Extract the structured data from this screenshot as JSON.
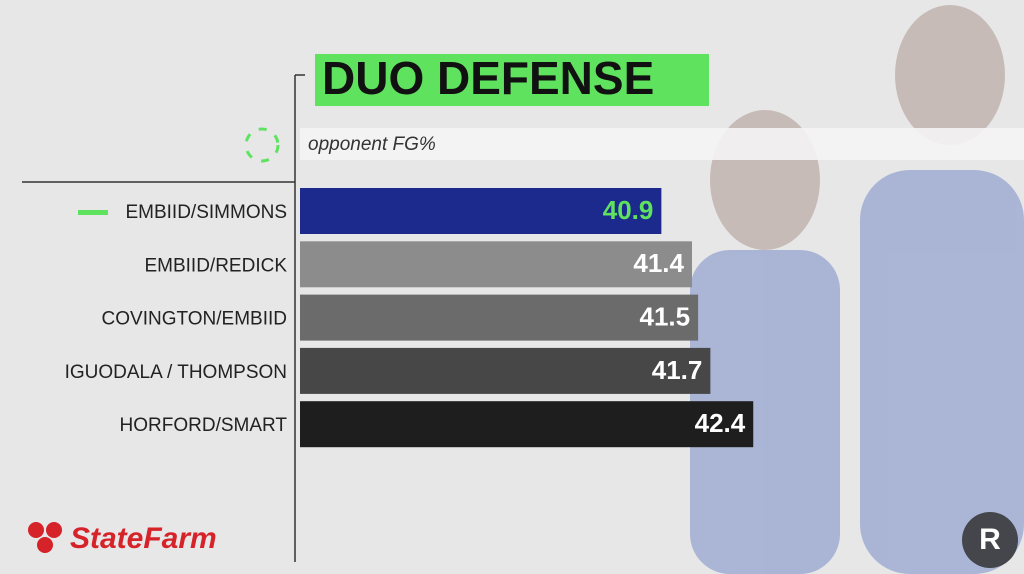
{
  "chart_data": {
    "type": "bar",
    "orientation": "horizontal",
    "title": "DUO DEFENSE",
    "subtitle": "opponent FG%",
    "categories": [
      "EMBIID/SIMMONS",
      "EMBIID/REDICK",
      "COVINGTON/EMBIID",
      "IGUODALA / THOMPSON",
      "HORFORD/SMART"
    ],
    "values": [
      40.9,
      41.4,
      41.5,
      41.7,
      42.4
    ],
    "colors": [
      "#1c2a8e",
      "#8c8c8c",
      "#6b6b6b",
      "#474747",
      "#1e1e1e"
    ],
    "label_colors": [
      "#5fe35f",
      "#ffffff",
      "#ffffff",
      "#ffffff",
      "#ffffff"
    ],
    "xlim": [
      35,
      43
    ],
    "sponsor": "StateFarm",
    "watermark": "R"
  }
}
